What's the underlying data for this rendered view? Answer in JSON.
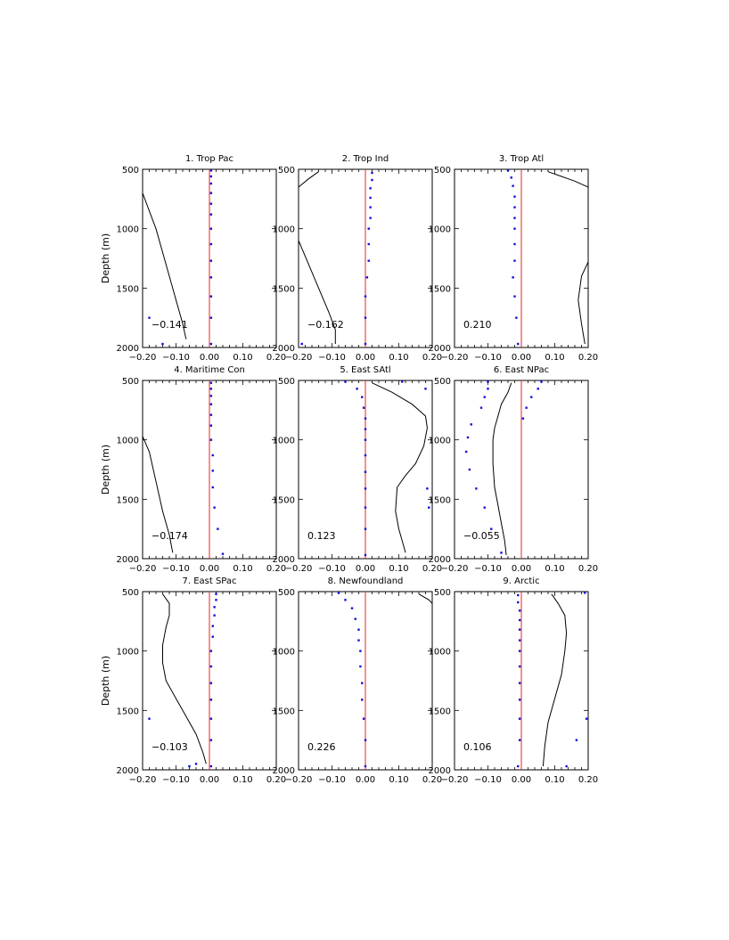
{
  "chart_data": [
    {
      "type": "line",
      "title": "1. Trop Pac",
      "ylabel": "Depth (m)",
      "annotation": "−0.141",
      "xlim": [
        -0.2,
        0.2
      ],
      "ylim": [
        2000,
        500
      ],
      "xticks": [
        "−0.20",
        "−0.10",
        "0.00",
        "0.10",
        "0.20"
      ],
      "yticks": [
        "500",
        "1000",
        "1500",
        "2000"
      ],
      "reference_x": 0,
      "line": [
        [
          -0.2,
          700
        ],
        [
          -0.18,
          850
        ],
        [
          -0.16,
          1000
        ],
        [
          -0.14,
          1200
        ],
        [
          -0.12,
          1400
        ],
        [
          -0.1,
          1600
        ],
        [
          -0.08,
          1800
        ],
        [
          -0.07,
          1930
        ]
      ],
      "points": [
        [
          0.005,
          510
        ],
        [
          0.005,
          560
        ],
        [
          0.005,
          620
        ],
        [
          0.005,
          700
        ],
        [
          0.005,
          790
        ],
        [
          0.005,
          880
        ],
        [
          0.005,
          1000
        ],
        [
          0.005,
          1130
        ],
        [
          0.005,
          1270
        ],
        [
          0.005,
          1410
        ],
        [
          0.005,
          1570
        ],
        [
          0.005,
          1750
        ],
        [
          0.005,
          1970
        ],
        [
          -0.18,
          1750
        ],
        [
          -0.14,
          1970
        ]
      ]
    },
    {
      "type": "line",
      "title": "2. Trop Ind",
      "ylabel": "",
      "annotation": "−0.162",
      "xlim": [
        -0.2,
        0.2
      ],
      "ylim": [
        2000,
        500
      ],
      "xticks": [
        "−0.20",
        "−0.10",
        "0.00",
        "0.10",
        "0.20"
      ],
      "yticks": [
        "500",
        "1000",
        "1500",
        "2000"
      ],
      "reference_x": 0,
      "line": [
        [
          -0.14,
          520
        ],
        [
          -0.17,
          580
        ],
        [
          -0.2,
          650
        ],
        [
          -0.2,
          1100
        ],
        [
          -0.17,
          1300
        ],
        [
          -0.14,
          1500
        ],
        [
          -0.11,
          1700
        ],
        [
          -0.09,
          1850
        ],
        [
          -0.09,
          1970
        ]
      ],
      "points": [
        [
          0.02,
          530
        ],
        [
          0.02,
          590
        ],
        [
          0.015,
          660
        ],
        [
          0.015,
          740
        ],
        [
          0.015,
          820
        ],
        [
          0.015,
          910
        ],
        [
          0.01,
          1000
        ],
        [
          0.01,
          1130
        ],
        [
          0.01,
          1270
        ],
        [
          0.005,
          1410
        ],
        [
          0.0,
          1570
        ],
        [
          0.0,
          1750
        ],
        [
          0.0,
          1970
        ],
        [
          -0.19,
          1970
        ]
      ]
    },
    {
      "type": "line",
      "title": "3. Trop Atl",
      "ylabel": "",
      "annotation": "0.210",
      "xlim": [
        -0.2,
        0.2
      ],
      "ylim": [
        2000,
        500
      ],
      "xticks": [
        "−0.20",
        "−0.10",
        "0.00",
        "0.10",
        "0.20"
      ],
      "yticks": [
        "500",
        "1000",
        "1500",
        "2000"
      ],
      "reference_x": 0,
      "line": [
        [
          0.08,
          520
        ],
        [
          0.12,
          560
        ],
        [
          0.16,
          600
        ],
        [
          0.2,
          650
        ],
        [
          0.2,
          1280
        ],
        [
          0.18,
          1400
        ],
        [
          0.17,
          1600
        ],
        [
          0.18,
          1800
        ],
        [
          0.19,
          1970
        ]
      ],
      "points": [
        [
          -0.04,
          510
        ],
        [
          -0.03,
          570
        ],
        [
          -0.025,
          640
        ],
        [
          -0.02,
          730
        ],
        [
          -0.02,
          820
        ],
        [
          -0.02,
          910
        ],
        [
          -0.02,
          1000
        ],
        [
          -0.02,
          1130
        ],
        [
          -0.02,
          1270
        ],
        [
          -0.025,
          1410
        ],
        [
          -0.02,
          1570
        ],
        [
          -0.015,
          1750
        ],
        [
          -0.01,
          1970
        ]
      ]
    },
    {
      "type": "line",
      "title": "4. Maritime Con",
      "ylabel": "Depth (m)",
      "annotation": "−0.174",
      "xlim": [
        -0.2,
        0.2
      ],
      "ylim": [
        2000,
        500
      ],
      "xticks": [
        "−0.20",
        "−0.10",
        "0.00",
        "0.10",
        "0.20"
      ],
      "yticks": [
        "500",
        "1000",
        "1500",
        "2000"
      ],
      "reference_x": 0,
      "line": [
        [
          -0.2,
          970
        ],
        [
          -0.18,
          1100
        ],
        [
          -0.16,
          1350
        ],
        [
          -0.14,
          1600
        ],
        [
          -0.12,
          1800
        ],
        [
          -0.11,
          1950
        ]
      ],
      "points": [
        [
          0.005,
          520
        ],
        [
          0.005,
          570
        ],
        [
          0.005,
          630
        ],
        [
          0.005,
          700
        ],
        [
          0.005,
          790
        ],
        [
          0.005,
          880
        ],
        [
          0.005,
          1000
        ],
        [
          0.01,
          1130
        ],
        [
          0.01,
          1260
        ],
        [
          0.01,
          1400
        ],
        [
          0.015,
          1570
        ],
        [
          0.025,
          1750
        ],
        [
          0.04,
          1960
        ]
      ]
    },
    {
      "type": "line",
      "title": "5. East SAtl",
      "ylabel": "",
      "annotation": "0.123",
      "xlim": [
        -0.2,
        0.2
      ],
      "ylim": [
        2000,
        500
      ],
      "xticks": [
        "−0.20",
        "−0.10",
        "0.00",
        "0.10",
        "0.20"
      ],
      "yticks": [
        "500",
        "1000",
        "1500",
        "2000"
      ],
      "reference_x": 0,
      "line": [
        [
          0.02,
          520
        ],
        [
          0.08,
          600
        ],
        [
          0.14,
          700
        ],
        [
          0.18,
          800
        ],
        [
          0.185,
          900
        ],
        [
          0.175,
          1050
        ],
        [
          0.15,
          1200
        ],
        [
          0.12,
          1300
        ],
        [
          0.095,
          1400
        ],
        [
          0.09,
          1600
        ],
        [
          0.1,
          1750
        ],
        [
          0.11,
          1850
        ],
        [
          0.12,
          1950
        ]
      ],
      "points": [
        [
          -0.06,
          510
        ],
        [
          -0.025,
          570
        ],
        [
          -0.01,
          640
        ],
        [
          -0.005,
          730
        ],
        [
          0.0,
          820
        ],
        [
          0.0,
          910
        ],
        [
          0.0,
          1000
        ],
        [
          0.0,
          1130
        ],
        [
          0.0,
          1270
        ],
        [
          0.0,
          1410
        ],
        [
          0.0,
          1570
        ],
        [
          0.0,
          1750
        ],
        [
          0.0,
          1970
        ],
        [
          0.11,
          510
        ],
        [
          0.18,
          570
        ],
        [
          0.185,
          1410
        ],
        [
          0.19,
          1570
        ]
      ]
    },
    {
      "type": "line",
      "title": "6. East NPac",
      "ylabel": "",
      "annotation": "−0.055",
      "xlim": [
        -0.2,
        0.2
      ],
      "ylim": [
        2000,
        500
      ],
      "xticks": [
        "−0.20",
        "−0.10",
        "0.00",
        "0.10",
        "0.20"
      ],
      "yticks": [
        "500",
        "1000",
        "1500",
        "2000"
      ],
      "reference_x": 0,
      "line": [
        [
          -0.03,
          520
        ],
        [
          -0.04,
          600
        ],
        [
          -0.06,
          700
        ],
        [
          -0.07,
          800
        ],
        [
          -0.08,
          900
        ],
        [
          -0.085,
          1000
        ],
        [
          -0.085,
          1200
        ],
        [
          -0.08,
          1400
        ],
        [
          -0.07,
          1550
        ],
        [
          -0.06,
          1700
        ],
        [
          -0.05,
          1850
        ],
        [
          -0.045,
          1970
        ]
      ],
      "points": [
        [
          -0.1,
          510
        ],
        [
          -0.1,
          570
        ],
        [
          -0.11,
          640
        ],
        [
          -0.12,
          730
        ],
        [
          -0.15,
          870
        ],
        [
          -0.16,
          980
        ],
        [
          -0.165,
          1100
        ],
        [
          -0.155,
          1250
        ],
        [
          -0.135,
          1410
        ],
        [
          -0.11,
          1570
        ],
        [
          -0.09,
          1750
        ],
        [
          -0.06,
          1950
        ],
        [
          0.06,
          510
        ],
        [
          0.05,
          570
        ],
        [
          0.03,
          640
        ],
        [
          0.015,
          730
        ],
        [
          0.005,
          820
        ]
      ]
    },
    {
      "type": "line",
      "title": "7. East SPac",
      "ylabel": "Depth (m)",
      "annotation": "−0.103",
      "xlim": [
        -0.2,
        0.2
      ],
      "ylim": [
        2000,
        500
      ],
      "xticks": [
        "−0.20",
        "−0.10",
        "0.00",
        "0.10",
        "0.20"
      ],
      "yticks": [
        "500",
        "1000",
        "1500",
        "2000"
      ],
      "reference_x": 0,
      "line": [
        [
          -0.14,
          520
        ],
        [
          -0.12,
          600
        ],
        [
          -0.12,
          700
        ],
        [
          -0.13,
          800
        ],
        [
          -0.14,
          950
        ],
        [
          -0.14,
          1100
        ],
        [
          -0.13,
          1250
        ],
        [
          -0.1,
          1400
        ],
        [
          -0.07,
          1550
        ],
        [
          -0.04,
          1700
        ],
        [
          -0.02,
          1850
        ],
        [
          -0.01,
          1950
        ]
      ],
      "points": [
        [
          0.02,
          520
        ],
        [
          0.02,
          570
        ],
        [
          0.015,
          630
        ],
        [
          0.015,
          700
        ],
        [
          0.01,
          790
        ],
        [
          0.01,
          880
        ],
        [
          0.005,
          1000
        ],
        [
          0.005,
          1130
        ],
        [
          0.005,
          1270
        ],
        [
          0.005,
          1410
        ],
        [
          0.005,
          1570
        ],
        [
          0.005,
          1750
        ],
        [
          0.005,
          1970
        ],
        [
          -0.18,
          1570
        ],
        [
          -0.06,
          1970
        ],
        [
          -0.04,
          1950
        ]
      ]
    },
    {
      "type": "line",
      "title": "8. Newfoundland",
      "ylabel": "",
      "annotation": "0.226",
      "xlim": [
        -0.2,
        0.2
      ],
      "ylim": [
        2000,
        500
      ],
      "xticks": [
        "−0.20",
        "−0.10",
        "0.00",
        "0.10",
        "0.20"
      ],
      "yticks": [
        "500",
        "1000",
        "1500",
        "2000"
      ],
      "reference_x": 0,
      "line": [
        [
          0.16,
          520
        ],
        [
          0.19,
          570
        ],
        [
          0.2,
          600
        ]
      ],
      "points": [
        [
          -0.08,
          510
        ],
        [
          -0.06,
          570
        ],
        [
          -0.04,
          640
        ],
        [
          -0.03,
          730
        ],
        [
          -0.02,
          820
        ],
        [
          -0.02,
          910
        ],
        [
          -0.015,
          1000
        ],
        [
          -0.015,
          1130
        ],
        [
          -0.01,
          1270
        ],
        [
          -0.01,
          1410
        ],
        [
          -0.005,
          1570
        ],
        [
          0.0,
          1750
        ],
        [
          0.0,
          1970
        ]
      ]
    },
    {
      "type": "line",
      "title": "9. Arctic",
      "ylabel": "",
      "annotation": "0.106",
      "xlim": [
        -0.2,
        0.2
      ],
      "ylim": [
        2000,
        500
      ],
      "xticks": [
        "−0.20",
        "−0.10",
        "0.00",
        "0.10",
        "0.20"
      ],
      "yticks": [
        "500",
        "1000",
        "1500",
        "2000"
      ],
      "reference_x": 0,
      "line": [
        [
          0.09,
          520
        ],
        [
          0.11,
          600
        ],
        [
          0.13,
          700
        ],
        [
          0.135,
          850
        ],
        [
          0.13,
          1000
        ],
        [
          0.12,
          1200
        ],
        [
          0.1,
          1400
        ],
        [
          0.08,
          1600
        ],
        [
          0.07,
          1800
        ],
        [
          0.065,
          1970
        ]
      ],
      "points": [
        [
          -0.01,
          530
        ],
        [
          -0.01,
          590
        ],
        [
          -0.005,
          660
        ],
        [
          -0.005,
          740
        ],
        [
          -0.005,
          820
        ],
        [
          -0.005,
          910
        ],
        [
          -0.005,
          1000
        ],
        [
          -0.005,
          1130
        ],
        [
          -0.005,
          1270
        ],
        [
          -0.005,
          1410
        ],
        [
          -0.005,
          1570
        ],
        [
          -0.005,
          1750
        ],
        [
          -0.01,
          1970
        ],
        [
          0.19,
          510
        ],
        [
          0.195,
          1570
        ],
        [
          0.165,
          1750
        ],
        [
          0.135,
          1970
        ]
      ]
    }
  ]
}
